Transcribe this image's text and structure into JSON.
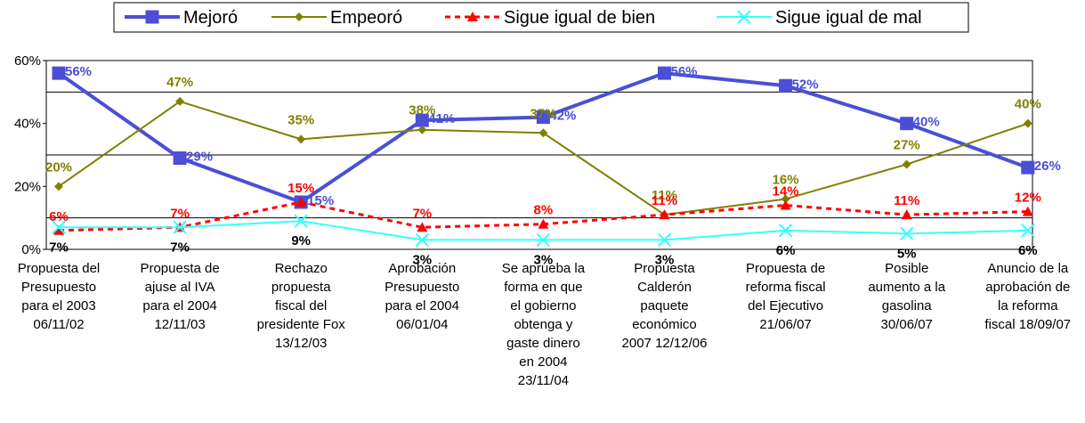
{
  "chart_data": {
    "type": "line",
    "categories": [
      "Propuesta del\nPresupuesto\npara el 2003\n06/11/02",
      "Propuesta de\najuse al IVA\npara el 2004\n12/11/03",
      "Rechazo\npropuesta\nfiscal del\npresidente Fox\n13/12/03",
      "Aprobación\nPresupuesto\npara el 2004\n06/01/04",
      "Se aprueba  la\nforma en que\nel gobierno\nobtenga y\ngaste dinero\nen 2004\n23/11/04",
      "Propuesta\nCalderón\npaquete\neconómico\n2007 12/12/06",
      "Propuesta de\nreforma fiscal\ndel Ejecutivo\n21/06/07",
      "Posible\naumento a la\ngasolina\n30/06/07",
      "Anuncio de la\naprobación de\nla reforma\nfiscal 18/09/07"
    ],
    "series": [
      {
        "name": "Mejoró",
        "color": "#4a4fd6",
        "marker": "square",
        "values": [
          56,
          29,
          15,
          41,
          42,
          56,
          52,
          40,
          26
        ],
        "value_labels": [
          "56%",
          "29%",
          "15%",
          "41%",
          "42%",
          "56%",
          "52%",
          "40%",
          "26%"
        ]
      },
      {
        "name": "Empeoró",
        "color": "#808000",
        "marker": "diamond",
        "values": [
          20,
          47,
          35,
          38,
          37,
          11,
          16,
          27,
          40
        ],
        "value_labels": [
          "20%",
          "47%",
          "35%",
          "38%",
          "37%",
          "11%",
          "16%",
          "27%",
          "40%"
        ]
      },
      {
        "name": "Sigue igual de bien",
        "color": "#ff0000",
        "marker": "triangle",
        "dashed": true,
        "values": [
          6,
          7,
          15,
          7,
          8,
          11,
          14,
          11,
          12
        ],
        "value_labels": [
          "6%",
          "7%",
          "15%",
          "7%",
          "8%",
          "11%",
          "14%",
          "11%",
          "12%"
        ]
      },
      {
        "name": "Sigue igual de mal",
        "color": "#33ffff",
        "label_color": "#000000",
        "marker": "x",
        "values": [
          7,
          7,
          9,
          3,
          3,
          3,
          6,
          5,
          6
        ],
        "value_labels": [
          "7%",
          "7%",
          "9%",
          "3%",
          "3%",
          "3%",
          "6%",
          "5%",
          "6%"
        ]
      }
    ],
    "ylim": [
      0,
      60
    ],
    "yticks": [
      {
        "value": 0,
        "label": "0%"
      },
      {
        "value": 20,
        "label": "20%"
      },
      {
        "value": 40,
        "label": "40%"
      },
      {
        "value": 60,
        "label": "60%"
      }
    ],
    "ygrid": [
      10,
      30,
      50
    ],
    "legend": "top"
  }
}
